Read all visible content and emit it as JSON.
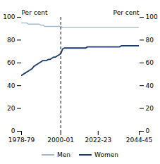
{
  "chart_data": {
    "type": "line",
    "title": "",
    "ylabel": "Per cent",
    "y2label": "Per cent",
    "x": [
      1979,
      1980,
      1981,
      1982,
      1983,
      1984,
      1985,
      1986,
      1987,
      1988,
      1989,
      1990,
      1991,
      1992,
      1993,
      1994,
      1995,
      1996,
      1997,
      1998,
      1999,
      2000,
      2001,
      2002,
      2003,
      2004,
      2005,
      2006,
      2007,
      2008,
      2009,
      2010,
      2011,
      2012,
      2013,
      2014,
      2015,
      2016,
      2017,
      2018,
      2019,
      2020,
      2021,
      2022,
      2023,
      2024,
      2025,
      2026,
      2027,
      2028,
      2029,
      2030,
      2031,
      2032,
      2033,
      2034,
      2035,
      2036,
      2037,
      2038,
      2039,
      2040,
      2041,
      2042,
      2043,
      2044,
      2045
    ],
    "series": [
      {
        "name": "Men",
        "color": "#a0b8c8",
        "values": [
          95,
          95,
          95,
          95,
          94,
          94,
          94,
          94,
          94,
          94,
          94,
          93,
          93,
          92,
          92,
          92,
          92,
          92,
          92,
          92,
          92,
          92,
          92,
          91,
          91,
          91,
          91,
          91,
          91,
          91,
          91,
          91,
          91,
          91,
          91,
          91,
          91,
          91,
          91,
          91,
          91,
          91,
          91,
          91,
          91,
          91,
          91,
          91,
          91,
          91,
          91,
          91,
          91,
          91,
          91,
          91,
          91,
          91,
          91,
          91,
          91,
          91,
          91,
          91,
          91,
          91,
          91
        ]
      },
      {
        "name": "Women",
        "color": "#1a3a6b",
        "values": [
          49,
          50,
          51,
          52,
          53,
          54,
          55,
          57,
          58,
          59,
          60,
          61,
          62,
          62,
          62,
          63,
          63,
          64,
          65,
          65,
          66,
          67,
          68,
          72,
          73,
          73,
          73,
          73,
          73,
          73,
          73,
          73,
          73,
          73,
          73,
          73,
          73,
          74,
          74,
          74,
          74,
          74,
          74,
          74,
          74,
          74,
          74,
          74,
          74,
          74,
          74,
          74,
          74,
          74,
          74,
          74,
          75,
          75,
          75,
          75,
          75,
          75,
          75,
          75,
          75,
          75,
          75
        ]
      }
    ],
    "xlim": [
      1979,
      2045
    ],
    "xticks": [
      {
        "value": 1979,
        "label": "1978-79"
      },
      {
        "value": 2001,
        "label": "2000-01"
      },
      {
        "value": 2022,
        "label": "2022-23"
      },
      {
        "value": 2045,
        "label": "2044-45"
      }
    ],
    "ylim": [
      0,
      100
    ],
    "yticks": [
      0,
      20,
      40,
      60,
      80,
      100
    ],
    "y2lim": [
      0,
      100
    ],
    "y2ticks": [
      0,
      20,
      40,
      60,
      80,
      100
    ],
    "vlines": [
      {
        "x": 2001.0,
        "color": "black",
        "line_style": "dashed"
      }
    ],
    "legend": "bottom",
    "grid": false
  }
}
